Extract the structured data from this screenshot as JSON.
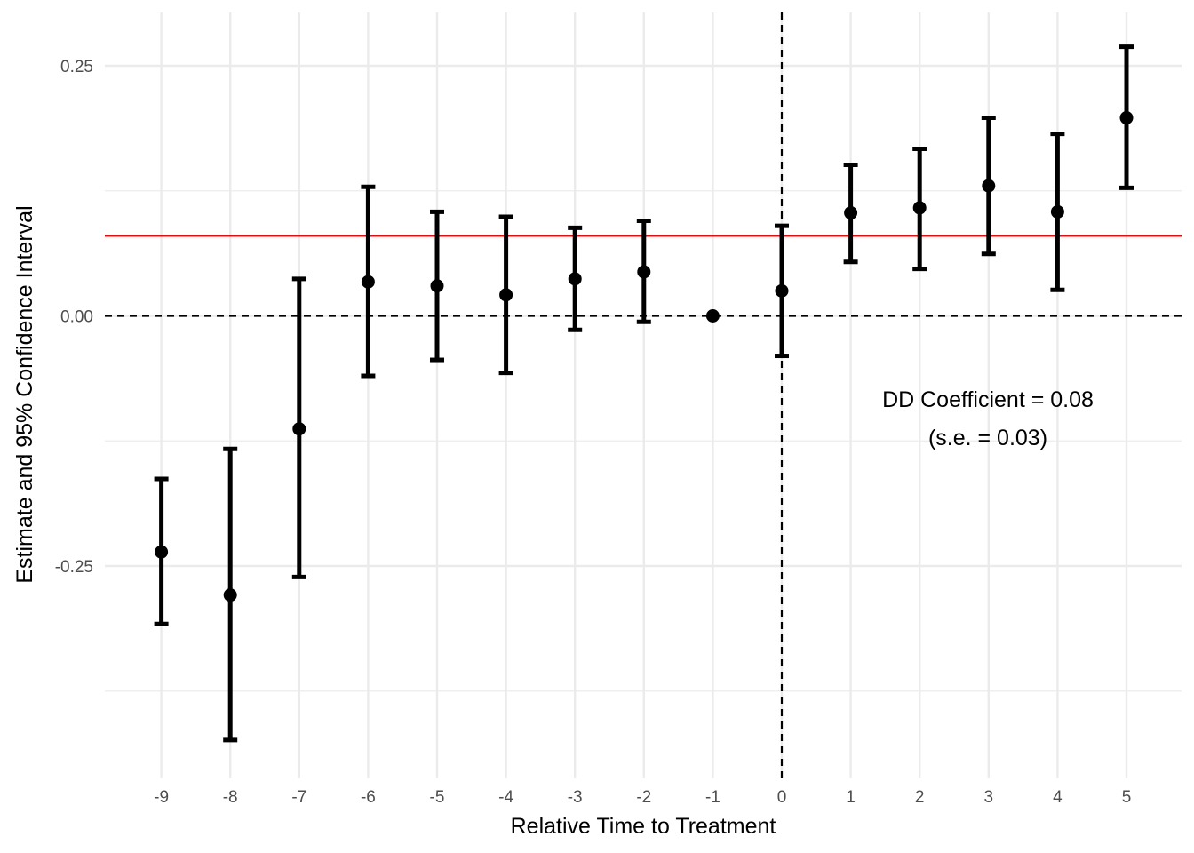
{
  "chart_data": {
    "type": "scatter",
    "subtype": "event-study point estimates with 95% confidence intervals",
    "title": "",
    "xlabel": "Relative Time to Treatment",
    "ylabel": "Estimate and 95% Confidence Interval",
    "x_ticks": [
      -9,
      -8,
      -7,
      -6,
      -5,
      -4,
      -3,
      -2,
      -1,
      0,
      1,
      2,
      3,
      4,
      5
    ],
    "x_tick_labels": [
      "-9",
      "-8",
      "-7",
      "-6",
      "-5",
      "-4",
      "-3",
      "-2",
      "-1",
      "0",
      "1",
      "2",
      "3",
      "4",
      "5"
    ],
    "y_ticks": [
      -0.25,
      0.0,
      0.25
    ],
    "y_tick_labels": [
      "-0.25",
      "0.00",
      "0.25"
    ],
    "xlim": [
      -9.7,
      5.7
    ],
    "ylim": [
      -0.46,
      0.302
    ],
    "grid": true,
    "legend": "none",
    "series": [
      {
        "points": [
          {
            "x": -9,
            "estimate": -0.236,
            "lower": -0.308,
            "upper": -0.163
          },
          {
            "x": -8,
            "estimate": -0.279,
            "lower": -0.424,
            "upper": -0.133
          },
          {
            "x": -7,
            "estimate": -0.113,
            "lower": -0.261,
            "upper": 0.037
          },
          {
            "x": -6,
            "estimate": 0.034,
            "lower": -0.06,
            "upper": 0.129
          },
          {
            "x": -5,
            "estimate": 0.03,
            "lower": -0.044,
            "upper": 0.104
          },
          {
            "x": -4,
            "estimate": 0.021,
            "lower": -0.057,
            "upper": 0.099
          },
          {
            "x": -3,
            "estimate": 0.037,
            "lower": -0.014,
            "upper": 0.088
          },
          {
            "x": -2,
            "estimate": 0.044,
            "lower": -0.006,
            "upper": 0.095
          },
          {
            "x": -1,
            "estimate": 0.0,
            "lower": null,
            "upper": null
          },
          {
            "x": 0,
            "estimate": 0.025,
            "lower": -0.04,
            "upper": 0.09
          },
          {
            "x": 1,
            "estimate": 0.103,
            "lower": 0.054,
            "upper": 0.151
          },
          {
            "x": 2,
            "estimate": 0.108,
            "lower": 0.047,
            "upper": 0.167
          },
          {
            "x": 3,
            "estimate": 0.13,
            "lower": 0.062,
            "upper": 0.198
          },
          {
            "x": 4,
            "estimate": 0.104,
            "lower": 0.026,
            "upper": 0.182
          },
          {
            "x": 5,
            "estimate": 0.198,
            "lower": 0.128,
            "upper": 0.269
          }
        ]
      }
    ],
    "reference_lines": {
      "horizontal_zero": {
        "y": 0.0,
        "style": "dashed",
        "color": "#000000"
      },
      "vertical_zero": {
        "x": 0,
        "style": "dashed",
        "color": "#000000"
      },
      "dd_coefficient": {
        "y": 0.08,
        "style": "solid",
        "color": "#ff0000"
      }
    },
    "annotations": [
      {
        "text": "DD Coefficient = 0.08",
        "x": 3.2,
        "y": -0.083
      },
      {
        "text": "(s.e. = 0.03)",
        "x": 3.2,
        "y": -0.122
      }
    ],
    "colors": {
      "points": "#000000",
      "grid": "#ebebeb",
      "dd_line": "#ff0000",
      "background": "#ffffff"
    }
  }
}
